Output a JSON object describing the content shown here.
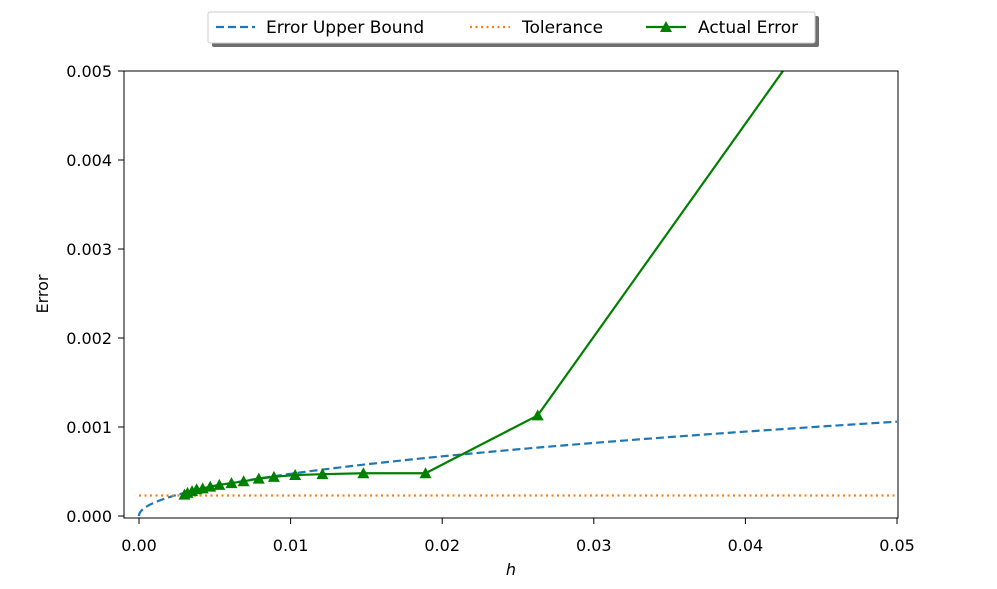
{
  "chart_data": {
    "type": "line",
    "xlabel": "h",
    "ylabel": "Error",
    "xlim": [
      0.0,
      0.05
    ],
    "ylim": [
      0.0,
      0.005
    ],
    "x_ticks": [
      "0.00",
      "0.01",
      "0.02",
      "0.03",
      "0.04",
      "0.05"
    ],
    "y_ticks": [
      "0.000",
      "0.001",
      "0.002",
      "0.003",
      "0.004",
      "0.005"
    ],
    "grid": false,
    "legend_position": "top-center",
    "series": [
      {
        "name": "Error Upper Bound",
        "style": "dashed",
        "color": "#1f77b4",
        "formula": "0.00474 * sqrt(h)",
        "x": [
          0.0,
          0.0005,
          0.001,
          0.002,
          0.003,
          0.004,
          0.005,
          0.0075,
          0.01,
          0.0125,
          0.015,
          0.0175,
          0.02,
          0.0225,
          0.025,
          0.0275,
          0.03,
          0.0325,
          0.035,
          0.0375,
          0.04,
          0.0425,
          0.045,
          0.0475,
          0.05
        ],
        "y": [
          0.0,
          0.000106,
          0.00015,
          0.000212,
          0.00026,
          0.0003,
          0.000335,
          0.00041,
          0.000474,
          0.00053,
          0.00058,
          0.000627,
          0.00067,
          0.000711,
          0.00075,
          0.000786,
          0.000821,
          0.000855,
          0.000887,
          0.000918,
          0.000948,
          0.000977,
          0.001005,
          0.001033,
          0.00106
        ]
      },
      {
        "name": "Tolerance",
        "style": "dotted",
        "color": "#ff7f0e",
        "x": [
          0.0,
          0.05
        ],
        "y": [
          0.00023,
          0.00023
        ]
      },
      {
        "name": "Actual Error",
        "style": "solid",
        "marker": "triangle",
        "color": "#008000",
        "x": [
          0.003,
          0.0032,
          0.0035,
          0.0038,
          0.0042,
          0.0047,
          0.0053,
          0.0061,
          0.0069,
          0.0079,
          0.0089,
          0.0103,
          0.0121,
          0.0148,
          0.0189,
          0.0263,
          0.05
        ],
        "y": [
          0.00024,
          0.00026,
          0.00028,
          0.0003,
          0.00031,
          0.00033,
          0.00035,
          0.00037,
          0.00039,
          0.00042,
          0.00044,
          0.00046,
          0.00047,
          0.00048,
          0.00048,
          0.00113,
          0.0068
        ]
      }
    ]
  }
}
